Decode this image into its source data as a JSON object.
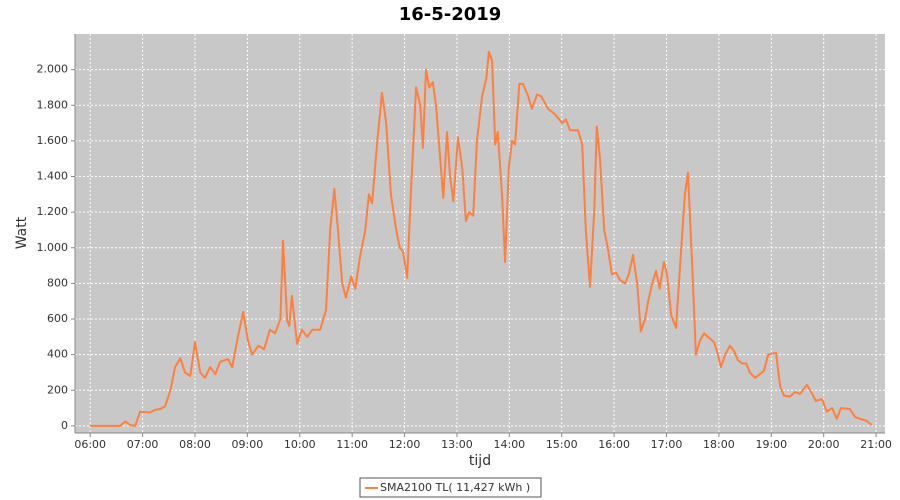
{
  "chart_data": {
    "type": "line",
    "title": "16-5-2019",
    "xlabel": "tijd",
    "ylabel": "Watt",
    "xlim": [
      5.71,
      21.17
    ],
    "ylim": [
      -40,
      2200
    ],
    "xticks": [
      {
        "value": 6,
        "label": "06:00"
      },
      {
        "value": 7,
        "label": "07:00"
      },
      {
        "value": 8,
        "label": "08:00"
      },
      {
        "value": 9,
        "label": "09:00"
      },
      {
        "value": 10,
        "label": "10:00"
      },
      {
        "value": 11,
        "label": "11:00"
      },
      {
        "value": 12,
        "label": "12:00"
      },
      {
        "value": 13,
        "label": "13:00"
      },
      {
        "value": 14,
        "label": "14:00"
      },
      {
        "value": 15,
        "label": "15:00"
      },
      {
        "value": 16,
        "label": "16:00"
      },
      {
        "value": 17,
        "label": "17:00"
      },
      {
        "value": 18,
        "label": "18:00"
      },
      {
        "value": 19,
        "label": "19:00"
      },
      {
        "value": 20,
        "label": "20:00"
      },
      {
        "value": 21,
        "label": "21:00"
      }
    ],
    "yticks": [
      0,
      200,
      400,
      600,
      800,
      {
        "value": 1000,
        "label": "1.000"
      },
      {
        "value": 1200,
        "label": "1.200"
      },
      {
        "value": 1400,
        "label": "1.400"
      },
      {
        "value": 1600,
        "label": "1.600"
      },
      {
        "value": 1800,
        "label": "1.800"
      },
      {
        "value": 2000,
        "label": "2.000"
      }
    ],
    "grid": true,
    "legend": "bottom",
    "x": [
      6.0,
      6.57,
      6.67,
      6.76,
      6.86,
      6.95,
      7.14,
      7.24,
      7.34,
      7.43,
      7.53,
      7.62,
      7.72,
      7.81,
      7.91,
      8.0,
      8.1,
      8.19,
      8.29,
      8.39,
      8.48,
      8.63,
      8.71,
      8.82,
      8.92,
      9.01,
      9.09,
      9.21,
      9.32,
      9.43,
      9.53,
      9.63,
      9.68,
      9.76,
      9.8,
      9.85,
      9.95,
      10.04,
      10.14,
      10.24,
      10.39,
      10.5,
      10.58,
      10.66,
      10.73,
      10.81,
      10.88,
      10.98,
      11.06,
      11.15,
      11.25,
      11.32,
      11.38,
      11.48,
      11.57,
      11.65,
      11.74,
      11.84,
      11.91,
      11.97,
      12.05,
      12.12,
      12.22,
      12.3,
      12.35,
      12.41,
      12.47,
      12.54,
      12.6,
      12.68,
      12.74,
      12.81,
      12.87,
      12.93,
      13.02,
      13.1,
      13.17,
      13.23,
      13.31,
      13.38,
      13.48,
      13.56,
      13.61,
      13.67,
      13.73,
      13.78,
      13.86,
      13.92,
      13.99,
      14.05,
      14.11,
      14.19,
      14.26,
      14.36,
      14.43,
      14.53,
      14.61,
      14.74,
      14.87,
      15.01,
      15.08,
      15.16,
      15.31,
      15.39,
      15.46,
      15.54,
      15.62,
      15.67,
      15.73,
      15.81,
      15.88,
      15.96,
      16.04,
      16.11,
      16.21,
      16.28,
      16.36,
      16.44,
      16.51,
      16.59,
      16.65,
      16.72,
      16.8,
      16.87,
      16.95,
      17.01,
      17.09,
      17.18,
      17.26,
      17.35,
      17.41,
      17.49,
      17.56,
      17.64,
      17.72,
      17.79,
      17.91,
      17.98,
      18.04,
      18.12,
      18.21,
      18.29,
      18.36,
      18.44,
      18.52,
      18.59,
      18.69,
      18.78,
      18.86,
      18.94,
      19.01,
      19.09,
      19.17,
      19.24,
      19.36,
      19.45,
      19.55,
      19.68,
      19.78,
      19.85,
      19.97,
      20.06,
      20.16,
      20.25,
      20.33,
      20.5,
      20.6,
      20.69,
      20.81,
      20.92
    ],
    "series": [
      {
        "name": "SMA2100 TL( 11,427 kWh )",
        "color": "#ff7f3f",
        "values": [
          0,
          0,
          25,
          5,
          0,
          80,
          75,
          90,
          95,
          110,
          200,
          330,
          380,
          300,
          280,
          470,
          300,
          270,
          330,
          290,
          360,
          375,
          330,
          500,
          640,
          480,
          400,
          450,
          430,
          540,
          520,
          600,
          1040,
          590,
          560,
          730,
          460,
          540,
          500,
          540,
          540,
          650,
          1100,
          1330,
          1100,
          800,
          720,
          840,
          770,
          950,
          1100,
          1300,
          1250,
          1600,
          1870,
          1700,
          1300,
          1100,
          1000,
          980,
          830,
          1300,
          1900,
          1800,
          1560,
          2000,
          1900,
          1930,
          1800,
          1500,
          1280,
          1650,
          1400,
          1260,
          1620,
          1450,
          1150,
          1200,
          1180,
          1600,
          1850,
          1950,
          2100,
          2050,
          1580,
          1650,
          1300,
          920,
          1450,
          1600,
          1580,
          1920,
          1920,
          1850,
          1780,
          1860,
          1850,
          1780,
          1750,
          1700,
          1720,
          1660,
          1660,
          1580,
          1100,
          780,
          1200,
          1680,
          1500,
          1100,
          1000,
          850,
          860,
          820,
          800,
          850,
          960,
          800,
          530,
          600,
          700,
          790,
          870,
          770,
          920,
          850,
          620,
          550,
          900,
          1300,
          1420,
          900,
          400,
          480,
          520,
          500,
          470,
          400,
          330,
          400,
          450,
          420,
          370,
          350,
          350,
          300,
          270,
          290,
          310,
          400,
          405,
          410,
          220,
          170,
          165,
          190,
          180,
          230,
          180,
          140,
          150,
          80,
          100,
          40,
          100,
          95,
          50,
          40,
          30,
          5
        ]
      }
    ]
  }
}
